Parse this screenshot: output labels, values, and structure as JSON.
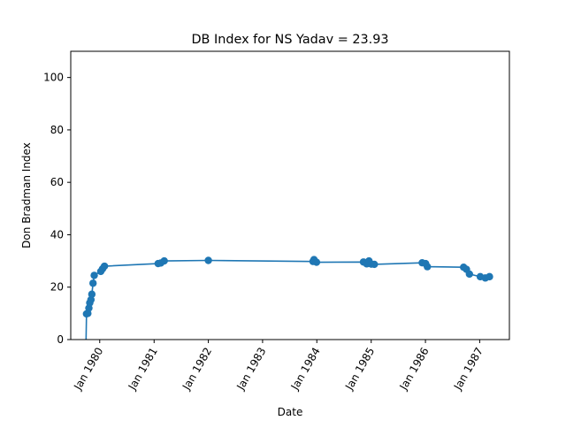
{
  "chart_data": {
    "type": "line",
    "title": "DB Index for NS Yadav = 23.93",
    "xlabel": "Date",
    "ylabel": "Don Bradman Index",
    "ylim": [
      0,
      110
    ],
    "yticks": [
      0,
      20,
      40,
      60,
      80,
      100
    ],
    "xlim": [
      "1979-06-20",
      "1987-07-20"
    ],
    "xticks": [
      {
        "date": "1980-01-01",
        "label": "Jan 1980"
      },
      {
        "date": "1981-01-01",
        "label": "Jan 1981"
      },
      {
        "date": "1982-01-01",
        "label": "Jan 1982"
      },
      {
        "date": "1983-01-01",
        "label": "Jan 1983"
      },
      {
        "date": "1984-01-01",
        "label": "Jan 1984"
      },
      {
        "date": "1985-01-01",
        "label": "Jan 1985"
      },
      {
        "date": "1986-01-01",
        "label": "Jan 1986"
      },
      {
        "date": "1987-01-01",
        "label": "Jan 1987"
      }
    ],
    "grid": false,
    "legend": "none",
    "color": "#1f77b4",
    "series": [
      {
        "points": [
          {
            "x": "1979-10-01",
            "y": 0,
            "marker": false
          },
          {
            "x": "1979-10-04",
            "y": 9.8
          },
          {
            "x": "1979-10-13",
            "y": 10.0
          },
          {
            "x": "1979-10-20",
            "y": 12.0
          },
          {
            "x": "1979-10-26",
            "y": 14.0
          },
          {
            "x": "1979-11-03",
            "y": 15.2
          },
          {
            "x": "1979-11-09",
            "y": 17.3
          },
          {
            "x": "1979-11-17",
            "y": 21.5
          },
          {
            "x": "1979-11-25",
            "y": 24.5
          },
          {
            "x": "1980-01-08",
            "y": 26.0
          },
          {
            "x": "1980-01-20",
            "y": 27.0
          },
          {
            "x": "1980-02-02",
            "y": 28.0
          },
          {
            "x": "1981-01-28",
            "y": 29.0
          },
          {
            "x": "1981-02-15",
            "y": 29.2
          },
          {
            "x": "1981-03-10",
            "y": 30.0
          },
          {
            "x": "1982-01-01",
            "y": 30.2
          },
          {
            "x": "1983-12-06",
            "y": 29.8
          },
          {
            "x": "1983-12-13",
            "y": 30.5
          },
          {
            "x": "1983-12-30",
            "y": 29.5
          },
          {
            "x": "1984-11-10",
            "y": 29.6
          },
          {
            "x": "1984-12-02",
            "y": 28.9
          },
          {
            "x": "1984-12-17",
            "y": 30.0
          },
          {
            "x": "1985-01-02",
            "y": 28.8
          },
          {
            "x": "1985-01-22",
            "y": 28.7
          },
          {
            "x": "1985-12-10",
            "y": 29.3
          },
          {
            "x": "1986-01-02",
            "y": 29.0
          },
          {
            "x": "1986-01-14",
            "y": 27.8
          },
          {
            "x": "1986-09-15",
            "y": 27.6
          },
          {
            "x": "1986-10-04",
            "y": 26.8
          },
          {
            "x": "1986-10-24",
            "y": 25.0
          },
          {
            "x": "1987-01-05",
            "y": 24.0
          },
          {
            "x": "1987-02-08",
            "y": 23.5
          },
          {
            "x": "1987-03-08",
            "y": 24.0
          }
        ]
      }
    ]
  }
}
